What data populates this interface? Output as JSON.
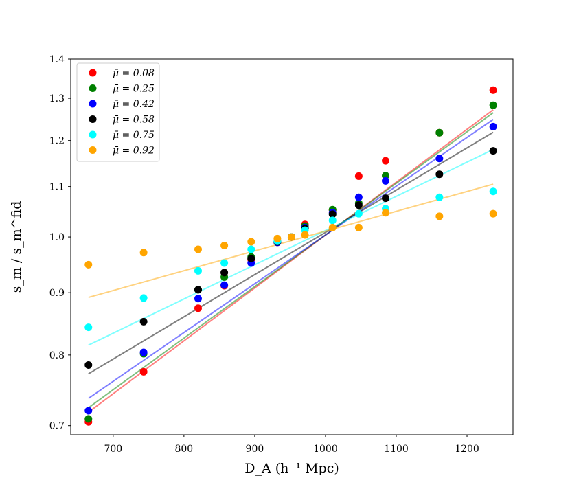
{
  "chart_data": {
    "type": "scatter",
    "xlabel": "D_A (h⁻¹ Mpc)",
    "ylabel": "s_m / s_m^fid",
    "yscale": "log",
    "xlim": [
      640,
      1265
    ],
    "ylim": [
      0.688,
      1.4
    ],
    "xticks": [
      700,
      800,
      900,
      1000,
      1100,
      1200
    ],
    "xtick_labels": [
      "700",
      "800",
      "900",
      "1000",
      "1100",
      "1200"
    ],
    "yticks": [
      0.7,
      0.8,
      0.9,
      1.0,
      1.1,
      1.2,
      1.3,
      1.4
    ],
    "ytick_labels": [
      "0.7",
      "0.8",
      "0.9",
      "1.0",
      "1.1",
      "1.2",
      "1.3",
      "1.4"
    ],
    "legend_position": "top-left",
    "x": [
      665,
      743,
      820,
      857,
      895,
      932,
      952,
      971,
      1010,
      1047,
      1085,
      1161,
      1237
    ],
    "series": [
      {
        "name": "μ̄ = 0.08",
        "color": "#ff0000",
        "values": [
          0.705,
          0.775,
          0.874,
          0.912,
          0.958,
          0.99,
          1.0,
          1.024,
          1.052,
          1.122,
          1.155,
          1.218,
          1.32
        ],
        "fit": [
          0.718,
          1.272
        ]
      },
      {
        "name": "μ̄ = 0.25",
        "color": "#008000",
        "values": [
          0.709,
          0.802,
          0.905,
          0.927,
          0.963,
          0.991,
          1.0,
          1.021,
          1.053,
          1.066,
          1.123,
          1.218,
          1.283
        ],
        "fit": [
          0.724,
          1.265
        ]
      },
      {
        "name": "μ̄ = 0.42",
        "color": "#0000ff",
        "values": [
          0.72,
          0.804,
          0.89,
          0.913,
          0.952,
          0.99,
          1.0,
          1.018,
          1.047,
          1.078,
          1.112,
          1.16,
          1.232
        ],
        "fit": [
          0.737,
          1.249
        ]
      },
      {
        "name": "μ̄ = 0.58",
        "color": "#000000",
        "values": [
          0.785,
          0.852,
          0.905,
          0.935,
          0.96,
          0.991,
          1.0,
          1.016,
          1.044,
          1.062,
          1.076,
          1.126,
          1.177
        ],
        "fit": [
          0.772,
          1.219
        ]
      },
      {
        "name": "μ̄ = 0.75",
        "color": "#00ffff",
        "values": [
          0.843,
          0.891,
          0.938,
          0.952,
          0.977,
          0.992,
          1.0,
          1.013,
          1.032,
          1.045,
          1.055,
          1.078,
          1.09
        ],
        "fit": [
          0.815,
          1.18
        ]
      },
      {
        "name": "μ̄ = 0.92",
        "color": "#ffa500",
        "values": [
          0.949,
          0.971,
          0.977,
          0.984,
          0.991,
          0.997,
          1.0,
          1.004,
          1.018,
          1.018,
          1.047,
          1.04,
          1.045
        ],
        "fit": [
          0.892,
          1.105
        ]
      }
    ]
  }
}
